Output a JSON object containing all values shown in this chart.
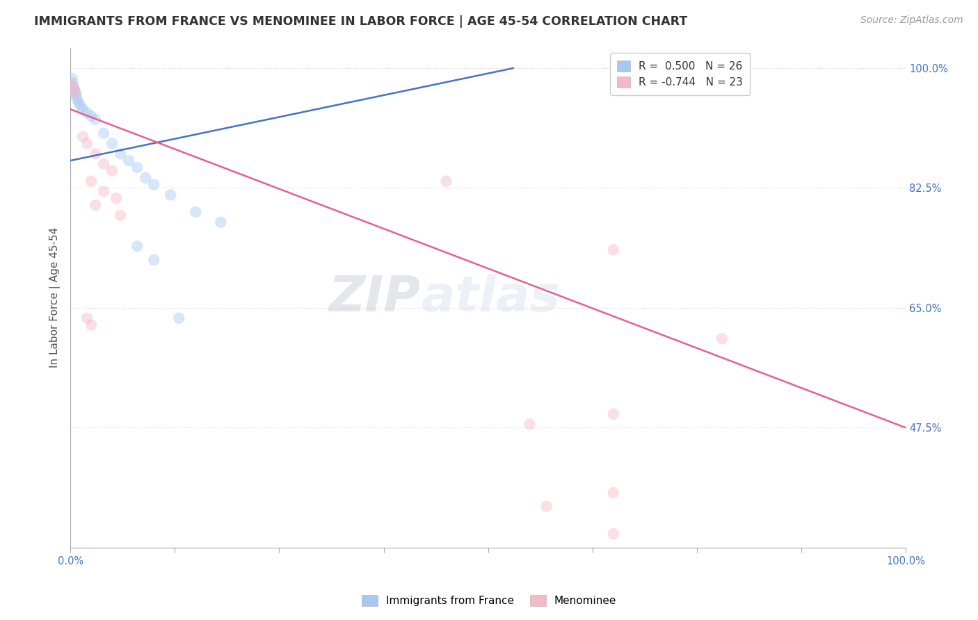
{
  "title": "IMMIGRANTS FROM FRANCE VS MENOMINEE IN LABOR FORCE | AGE 45-54 CORRELATION CHART",
  "source": "Source: ZipAtlas.com",
  "ylabel": "In Labor Force | Age 45-54",
  "x_min": 0.0,
  "x_max": 100.0,
  "y_min": 30.0,
  "y_max": 103.0,
  "y_ticks": [
    47.5,
    65.0,
    82.5,
    100.0
  ],
  "x_ticks_minor": [
    0,
    12.5,
    25,
    37.5,
    50,
    62.5,
    75,
    87.5,
    100
  ],
  "legend_entries": [
    {
      "label": "R =  0.500   N = 26",
      "color": "#a8c8f0"
    },
    {
      "label": "R = -0.744   N = 23",
      "color": "#f4b8c8"
    }
  ],
  "france_color": "#a8c8f0",
  "menominee_color": "#f4b8c8",
  "france_line_color": "#4472c4",
  "menominee_line_color": "#e8608a",
  "watermark_zip": "ZIP",
  "watermark_atlas": "atlas",
  "france_points": [
    [
      0.2,
      98.5
    ],
    [
      0.3,
      97.8
    ],
    [
      0.4,
      97.2
    ],
    [
      0.5,
      96.8
    ],
    [
      0.6,
      96.5
    ],
    [
      0.7,
      96.0
    ],
    [
      0.8,
      95.5
    ],
    [
      1.0,
      95.0
    ],
    [
      1.2,
      94.5
    ],
    [
      1.5,
      94.0
    ],
    [
      2.0,
      93.5
    ],
    [
      2.5,
      93.0
    ],
    [
      3.0,
      92.5
    ],
    [
      4.0,
      90.5
    ],
    [
      5.0,
      89.0
    ],
    [
      6.0,
      87.5
    ],
    [
      7.0,
      86.5
    ],
    [
      8.0,
      85.5
    ],
    [
      9.0,
      84.0
    ],
    [
      10.0,
      83.0
    ],
    [
      12.0,
      81.5
    ],
    [
      15.0,
      79.0
    ],
    [
      18.0,
      77.5
    ],
    [
      8.0,
      74.0
    ],
    [
      10.0,
      72.0
    ],
    [
      13.0,
      63.5
    ]
  ],
  "menominee_points": [
    [
      0.2,
      97.5
    ],
    [
      0.4,
      97.0
    ],
    [
      0.6,
      96.5
    ],
    [
      1.5,
      90.0
    ],
    [
      2.0,
      89.0
    ],
    [
      3.0,
      87.5
    ],
    [
      4.0,
      86.0
    ],
    [
      5.0,
      85.0
    ],
    [
      2.5,
      83.5
    ],
    [
      4.0,
      82.0
    ],
    [
      5.5,
      81.0
    ],
    [
      3.0,
      80.0
    ],
    [
      6.0,
      78.5
    ],
    [
      2.0,
      63.5
    ],
    [
      2.5,
      62.5
    ],
    [
      45.0,
      83.5
    ],
    [
      65.0,
      73.5
    ],
    [
      78.0,
      60.5
    ],
    [
      65.0,
      49.5
    ],
    [
      55.0,
      48.0
    ],
    [
      65.0,
      38.0
    ],
    [
      57.0,
      36.0
    ],
    [
      65.0,
      32.0
    ]
  ],
  "france_trend_x": [
    0.0,
    53.0
  ],
  "france_trend_y": [
    86.5,
    100.0
  ],
  "menominee_trend_x": [
    0.0,
    100.0
  ],
  "menominee_trend_y": [
    94.0,
    47.5
  ],
  "background_color": "#ffffff",
  "grid_color": "#d8d8d8",
  "marker_size": 140,
  "marker_alpha": 0.45,
  "title_fontsize": 12.5,
  "label_fontsize": 11,
  "tick_fontsize": 10.5,
  "source_fontsize": 10
}
